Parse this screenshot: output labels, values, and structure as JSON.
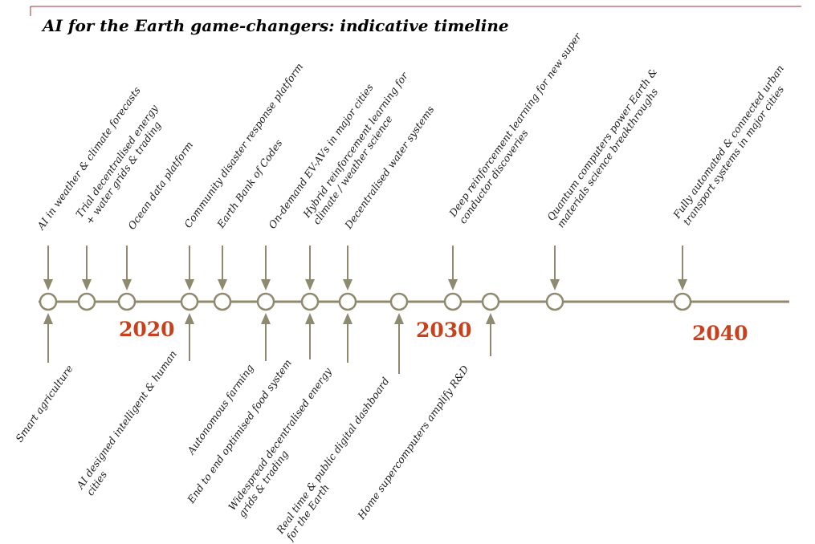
{
  "title": "AI for the Earth game-changers: indicative timeline",
  "colors": {
    "line": "#8f8a6f",
    "year": "#c8401c",
    "text": "#1a1a1a",
    "rule": "#a03030"
  },
  "years": [
    {
      "label": "2020"
    },
    {
      "label": "2030"
    },
    {
      "label": "2040"
    }
  ],
  "events_above": [
    {
      "lines": [
        "AI in weather & climate forecasts"
      ]
    },
    {
      "lines": [
        "Trial decentralised energy",
        "+ water grids & trading"
      ]
    },
    {
      "lines": [
        "Ocean data platform"
      ]
    },
    {
      "lines": [
        "Community disaster response platform"
      ]
    },
    {
      "lines": [
        "Earth Bank of Codes"
      ]
    },
    {
      "lines": [
        "On-demand EV-AVs in major cities"
      ]
    },
    {
      "lines": [
        "Hybrid reinforcement learning for",
        "climate / weather science"
      ]
    },
    {
      "lines": [
        "Decentralised water systems"
      ]
    },
    {
      "lines": [
        "Deep reinforcement learning for new super",
        "conductor discoveries"
      ]
    },
    {
      "lines": [
        "Quantum computers power Earth &",
        "materials science breakthroughs"
      ]
    },
    {
      "lines": [
        "Fully automated & connected urban",
        "transport systems in major cities"
      ]
    }
  ],
  "events_below": [
    {
      "lines": [
        "Smart agriculture"
      ]
    },
    {
      "lines": [
        "AI designed intelligent & human",
        "cities"
      ]
    },
    {
      "lines": [
        "Autonomous farming"
      ]
    },
    {
      "lines": [
        "End to end optimised food system"
      ]
    },
    {
      "lines": [
        "Widespread decentralised energy",
        "grids & trading"
      ]
    },
    {
      "lines": [
        "Real time & public digital dashboard",
        "for the Earth"
      ]
    },
    {
      "lines": [
        "Home supercomputers amplify R&D"
      ]
    }
  ]
}
